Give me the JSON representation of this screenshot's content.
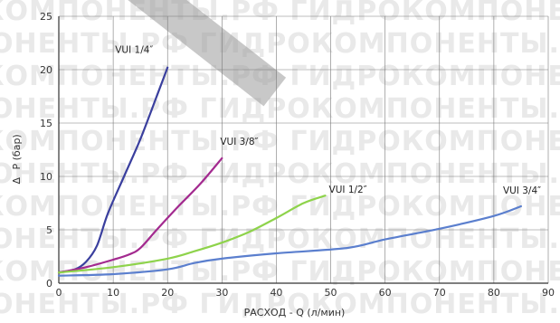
{
  "chart_data": {
    "type": "line",
    "title": "",
    "xlabel": "РАСХОД - Q (л/мин)",
    "ylabel": "P (бар)",
    "ylabel_symbol": "Δ",
    "xlim": [
      0,
      90
    ],
    "ylim": [
      0,
      25
    ],
    "x_ticks": [
      0,
      10,
      20,
      30,
      40,
      50,
      60,
      70,
      80,
      90
    ],
    "y_ticks": [
      0,
      5,
      10,
      15,
      20,
      25
    ],
    "grid": true,
    "legend": "none",
    "watermark": "КОМПОНЕНТЫ.РФ ГИДРОКОМПОНЕНТЫ.РФ",
    "series": [
      {
        "name": "VUI 1/4″",
        "color": "#3a3f9e",
        "points": [
          [
            0,
            1.0
          ],
          [
            3,
            1.3
          ],
          [
            5,
            2.0
          ],
          [
            7,
            3.5
          ],
          [
            9,
            6.5
          ],
          [
            12,
            10.0
          ],
          [
            15,
            13.5
          ],
          [
            18,
            17.5
          ],
          [
            20,
            20.2
          ]
        ]
      },
      {
        "name": "VUI 3/8″",
        "color": "#a32a8f",
        "points": [
          [
            0,
            1.0
          ],
          [
            5,
            1.5
          ],
          [
            10,
            2.2
          ],
          [
            13,
            2.7
          ],
          [
            15,
            3.3
          ],
          [
            18,
            5.0
          ],
          [
            22,
            7.2
          ],
          [
            26,
            9.3
          ],
          [
            30,
            11.7
          ]
        ]
      },
      {
        "name": "VUI 1/2″",
        "color": "#8ed34b",
        "points": [
          [
            0,
            1.0
          ],
          [
            10,
            1.5
          ],
          [
            20,
            2.3
          ],
          [
            25,
            3.0
          ],
          [
            30,
            3.8
          ],
          [
            35,
            4.8
          ],
          [
            40,
            6.1
          ],
          [
            45,
            7.5
          ],
          [
            49,
            8.2
          ]
        ]
      },
      {
        "name": "VUI 3/4″",
        "color": "#5b7fce",
        "points": [
          [
            0,
            0.7
          ],
          [
            10,
            0.85
          ],
          [
            20,
            1.3
          ],
          [
            25,
            1.9
          ],
          [
            30,
            2.3
          ],
          [
            40,
            2.8
          ],
          [
            53,
            3.3
          ],
          [
            60,
            4.1
          ],
          [
            70,
            5.1
          ],
          [
            80,
            6.3
          ],
          [
            85,
            7.2
          ]
        ]
      }
    ]
  }
}
